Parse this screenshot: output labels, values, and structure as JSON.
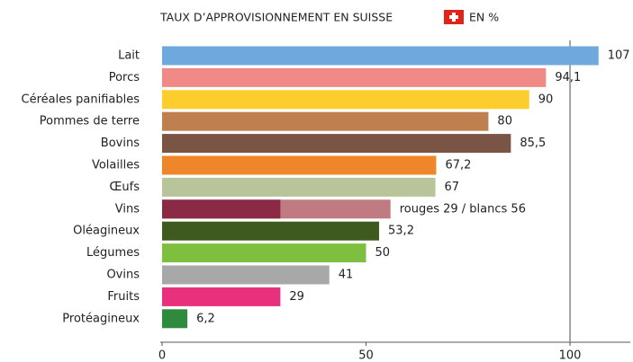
{
  "chart_data": {
    "type": "hbar",
    "title": "TAUX D’APPROVISIONNEMENT EN SUISSE",
    "unit": "EN %",
    "categories": [
      "Lait",
      "Porcs",
      "Céréales panifiables",
      "Pommes de terre",
      "Bovins",
      "Volailles",
      "Œufs",
      "Vins",
      "Oléagineux",
      "Légumes",
      "Ovins",
      "Fruits",
      "Protéagineux"
    ],
    "values": [
      107,
      94.1,
      90,
      80,
      85.5,
      67.2,
      67,
      null,
      53.2,
      50,
      41,
      29,
      6.2
    ],
    "value_labels": [
      "107",
      "94,1",
      "90",
      "80",
      "85,5",
      "67,2",
      "67",
      null,
      "53,2",
      "50",
      "41",
      "29",
      "6,2"
    ],
    "colors": [
      "#6fa8dc",
      "#f08a86",
      "#fccd2d",
      "#c07f4e",
      "#7a5545",
      "#f0862b",
      "#b8c49a",
      null,
      "#3f5a1e",
      "#7fbf3f",
      "#a8a8a8",
      "#e8317d",
      "#2e8b3e"
    ],
    "vins": {
      "rouges": 29,
      "blancs": 56,
      "rouges_color": "#8a2a45",
      "blancs_color": "#c07b82",
      "label": "rouges 29 / blancs 56"
    },
    "xlim": [
      0,
      115
    ],
    "xticks": [
      0,
      50,
      100
    ],
    "reference_line": 100
  }
}
